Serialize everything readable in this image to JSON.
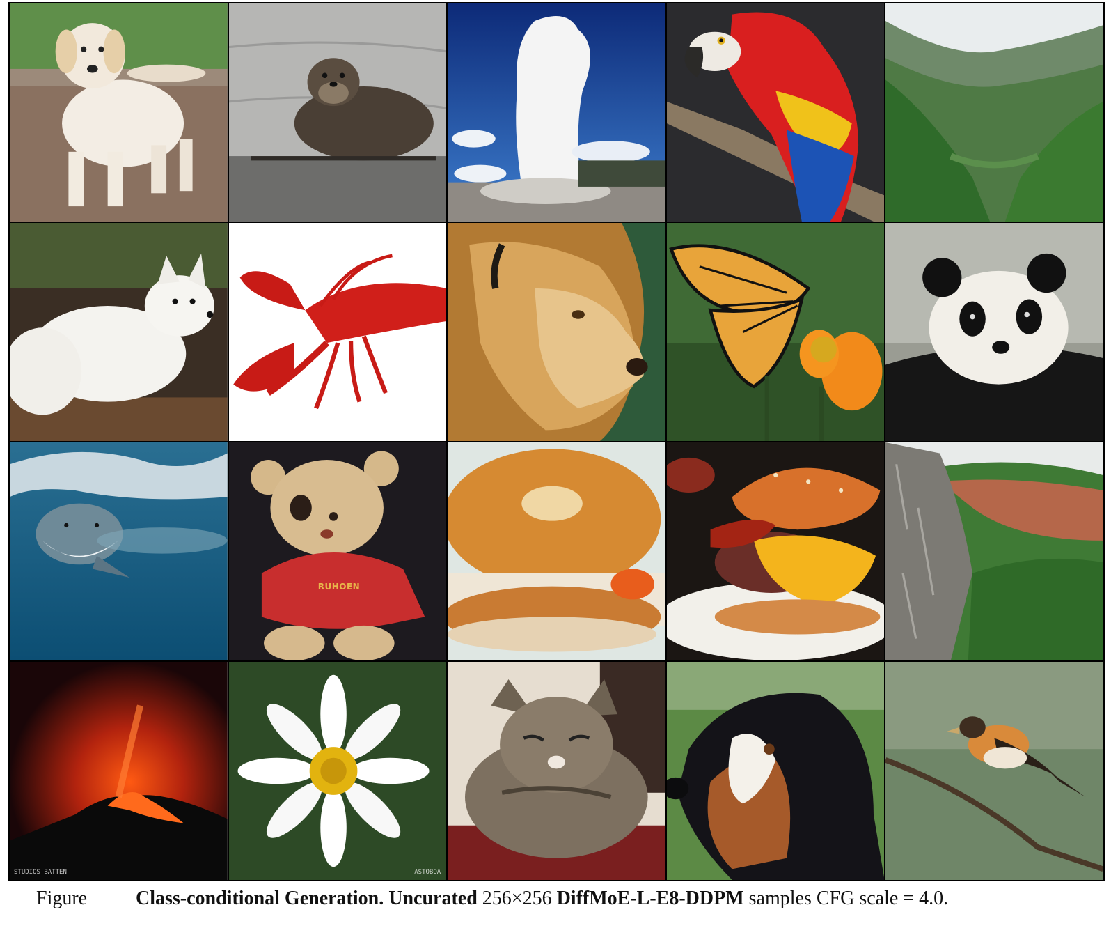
{
  "figure": {
    "panels": [
      {
        "id": "golden-retriever-puppy"
      },
      {
        "id": "otter"
      },
      {
        "id": "geyser"
      },
      {
        "id": "macaw"
      },
      {
        "id": "valley"
      },
      {
        "id": "arctic-fox"
      },
      {
        "id": "lobster"
      },
      {
        "id": "lion"
      },
      {
        "id": "monarch-butterfly"
      },
      {
        "id": "giant-panda"
      },
      {
        "id": "great-white-shark"
      },
      {
        "id": "teddy-bear",
        "text": "RUHOEN"
      },
      {
        "id": "bagel"
      },
      {
        "id": "cheeseburger"
      },
      {
        "id": "cliff"
      },
      {
        "id": "volcano",
        "watermark": "STUDIOS BATTEN"
      },
      {
        "id": "daisy",
        "watermark": "ASTOBOA"
      },
      {
        "id": "tabby-cat"
      },
      {
        "id": "bernese-mountain-dog"
      },
      {
        "id": "brambling"
      }
    ]
  },
  "caption": {
    "label": "Figure",
    "title": "Class-conditional Generation.",
    "emph": "Uncurated",
    "res": "256×256",
    "model": "DiffMoE-L-E8-DDPM",
    "rest": "samples CFG scale = 4.0."
  }
}
